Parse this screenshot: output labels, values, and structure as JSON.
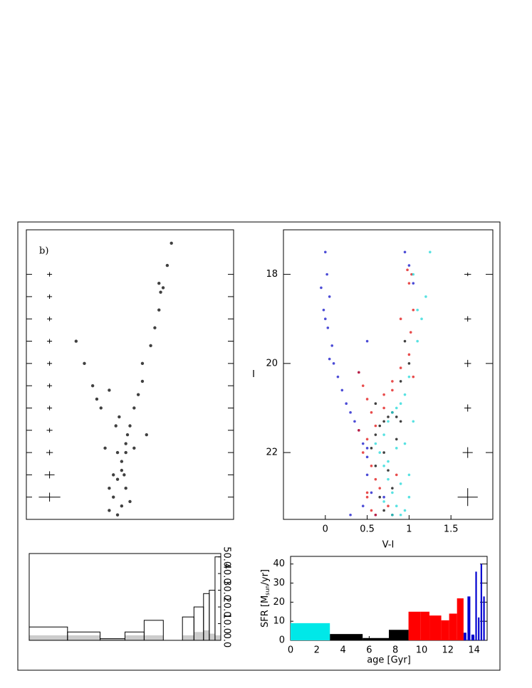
{
  "chart_data": [
    {
      "type": "scatter",
      "annotation": "b)",
      "xlim": [
        -0.5,
        2.0
      ],
      "ylim": [
        23.5,
        17
      ],
      "series": [
        {
          "color": "#000000",
          "x": [
            0.5,
            0.55,
            0.6,
            0.65,
            0.7,
            0.75,
            0.8,
            0.85,
            0.9,
            0.6,
            0.65,
            0.7,
            0.75,
            0.55,
            0.6,
            0.5,
            0.45,
            0.4,
            0.3,
            0.2,
            0.1,
            0.9,
            1.0,
            1.05,
            1.1,
            1.15,
            1.12,
            1.1,
            1.2,
            1.25,
            0.8,
            0.95,
            0.65,
            0.7,
            0.72,
            0.68,
            0.58,
            0.62,
            0.5,
            0.35
          ],
          "y": [
            23.3,
            23.0,
            22.6,
            22.2,
            21.8,
            21.4,
            21.0,
            20.7,
            20.4,
            23.4,
            23.2,
            22.8,
            23.1,
            22.5,
            22.0,
            22.8,
            21.9,
            21.0,
            20.5,
            20.0,
            19.5,
            20.0,
            19.6,
            19.2,
            18.8,
            18.3,
            18.4,
            18.2,
            17.8,
            17.3,
            21.9,
            21.6,
            22.4,
            22.0,
            21.6,
            22.5,
            21.4,
            21.2,
            20.6,
            20.8
          ]
        }
      ],
      "errorbars": {
        "x": [
          -0.22,
          -0.22,
          -0.22,
          -0.22,
          -0.22,
          -0.22,
          -0.22,
          -0.22,
          -0.22,
          -0.22,
          -0.22
        ],
        "y": [
          18,
          18.5,
          19,
          19.5,
          20,
          20.5,
          21,
          21.5,
          22,
          22.5,
          23
        ],
        "xerr": [
          0.03,
          0.03,
          0.03,
          0.03,
          0.03,
          0.03,
          0.03,
          0.035,
          0.04,
          0.06,
          0.13
        ],
        "yerr": [
          0.05,
          0.05,
          0.05,
          0.05,
          0.05,
          0.05,
          0.05,
          0.05,
          0.06,
          0.08,
          0.1
        ]
      }
    },
    {
      "type": "scatter",
      "xlabel": "V-I",
      "ylabel": "I",
      "xlim": [
        -0.5,
        2.0
      ],
      "ylim": [
        23.5,
        17
      ],
      "xticks": [
        0,
        0.5,
        1,
        1.5
      ],
      "yticks": [
        18,
        20,
        22
      ],
      "series": [
        {
          "color": "#1010c8",
          "x": [
            0.0,
            0.02,
            0.05,
            -0.02,
            0.03,
            0.08,
            0.1,
            0.15,
            0.2,
            0.25,
            0.3,
            0.35,
            0.4,
            0.45,
            0.5,
            0.5,
            0.55,
            0.45,
            0.6,
            0.5,
            0.0,
            0.05,
            -0.05,
            1.0,
            1.05,
            0.95,
            0.3,
            0.7,
            0.4,
            0.5
          ],
          "y": [
            17.5,
            18.0,
            18.5,
            18.8,
            19.2,
            19.6,
            20.0,
            20.3,
            20.6,
            20.9,
            21.1,
            21.3,
            21.5,
            21.8,
            22.1,
            22.5,
            22.9,
            23.2,
            23.4,
            21.9,
            19.0,
            19.9,
            18.3,
            17.8,
            18.2,
            17.5,
            23.4,
            23.0,
            20.2,
            19.5
          ]
        },
        {
          "color": "#e01010",
          "x": [
            0.4,
            0.45,
            0.5,
            0.55,
            0.6,
            0.5,
            0.45,
            0.55,
            0.6,
            0.7,
            0.8,
            0.9,
            1.0,
            1.02,
            1.05,
            1.0,
            0.98,
            1.03,
            0.5,
            0.55,
            0.6,
            0.65,
            0.7,
            0.8,
            0.9,
            0.4,
            0.5,
            1.05,
            0.75,
            0.85
          ],
          "y": [
            20.2,
            20.5,
            20.8,
            21.1,
            21.4,
            21.7,
            22.0,
            22.3,
            22.6,
            20.7,
            20.4,
            20.1,
            19.8,
            19.3,
            18.8,
            18.2,
            17.9,
            18.0,
            23.0,
            23.3,
            23.4,
            22.8,
            21.0,
            20.6,
            19.0,
            21.5,
            22.9,
            20.3,
            23.2,
            22.5
          ]
        },
        {
          "color": "#000000",
          "x": [
            0.6,
            0.65,
            0.7,
            0.75,
            0.8,
            0.85,
            0.9,
            0.7,
            0.75,
            0.8,
            0.6,
            0.65,
            0.9,
            1.0,
            0.55,
            0.7,
            0.8,
            0.85,
            0.6,
            0.95
          ],
          "y": [
            21.6,
            21.4,
            21.3,
            21.2,
            21.1,
            21.2,
            21.3,
            22.0,
            22.4,
            22.8,
            22.3,
            23.0,
            20.4,
            20.0,
            21.9,
            23.3,
            23.4,
            21.7,
            20.9,
            19.5
          ]
        },
        {
          "color": "#20d8d8",
          "x": [
            0.65,
            0.7,
            0.75,
            0.8,
            0.85,
            0.9,
            0.95,
            1.0,
            0.7,
            0.75,
            0.8,
            0.85,
            0.9,
            0.95,
            1.0,
            1.1,
            1.15,
            1.2,
            1.05,
            0.95,
            0.8,
            0.7,
            0.6,
            1.0,
            1.05,
            0.9,
            1.1,
            1.25,
            0.85,
            0.75
          ],
          "y": [
            22.0,
            22.3,
            22.6,
            22.9,
            23.2,
            23.4,
            23.3,
            23.0,
            21.6,
            21.3,
            21.1,
            21.0,
            20.9,
            20.7,
            20.3,
            19.5,
            19.0,
            18.5,
            18.0,
            21.8,
            23.4,
            23.1,
            21.8,
            22.5,
            21.3,
            22.7,
            18.8,
            17.5,
            21.9,
            22.2
          ]
        }
      ],
      "errorbars": {
        "x": [
          1.7,
          1.7,
          1.7,
          1.7,
          1.7,
          1.7
        ],
        "y": [
          18,
          19,
          20,
          21,
          22,
          23
        ],
        "xerr": [
          0.04,
          0.04,
          0.04,
          0.04,
          0.06,
          0.12
        ],
        "yerr": [
          0.04,
          0.06,
          0.08,
          0.08,
          0.12,
          0.2
        ]
      }
    },
    {
      "type": "histogram",
      "xlim": [
        0,
        100
      ],
      "ylim": [
        0,
        52
      ],
      "y2ticks": [
        {
          "value": 0,
          "label": "0.0"
        },
        {
          "value": 10,
          "label": "10.0"
        },
        {
          "value": 20,
          "label": "20.0"
        },
        {
          "value": 30,
          "label": "30.0"
        },
        {
          "value": 40,
          "label": "40.0"
        },
        {
          "value": 50,
          "label": "50.0"
        }
      ],
      "series": [
        {
          "color": "#000000",
          "fill": "none",
          "bins": [
            0,
            20,
            37,
            50,
            60,
            70,
            80,
            86,
            91,
            94,
            97,
            100
          ],
          "values": [
            8,
            5,
            1,
            5,
            12,
            0,
            14,
            20,
            28,
            30,
            50
          ]
        },
        {
          "color": "#999999",
          "fill": "#cccccc",
          "bins": [
            0,
            20,
            37,
            50,
            60,
            70,
            80,
            86,
            91,
            94,
            97,
            100
          ],
          "values": [
            3,
            3,
            1,
            3,
            3,
            0,
            3,
            5,
            6,
            4,
            3
          ]
        }
      ]
    },
    {
      "type": "histogram",
      "xlabel": "age [Gyr]",
      "ylabel": {
        "text": "SFR [M",
        "sub": "sun",
        "rest": "/yr]"
      },
      "xlim": [
        0,
        15
      ],
      "ylim": [
        0,
        44
      ],
      "xticks": [
        0,
        2,
        4,
        6,
        8,
        10,
        12,
        14
      ],
      "yticks": [
        0,
        10,
        20,
        30,
        40
      ],
      "series": [
        {
          "color": "#00e8e8",
          "fill": "#00e8e8",
          "bins": [
            0,
            3
          ],
          "values": [
            9
          ]
        },
        {
          "color": "#000000",
          "fill": "#000000",
          "bins": [
            3,
            5.5,
            7.5,
            9
          ],
          "values": [
            3.3,
            1.2,
            5.5
          ]
        },
        {
          "color": "#ff0000",
          "fill": "#ff0000",
          "bins": [
            9,
            9.9,
            10.6,
            11.5,
            12.1,
            12.7,
            13.2
          ],
          "values": [
            15,
            15,
            13,
            10.5,
            14,
            22
          ]
        },
        {
          "color": "#0000d0",
          "fill": "#0000d0",
          "bins": [
            13.2,
            13.5,
            13.8,
            14.1,
            14.3,
            14.5,
            14.7,
            14.9
          ],
          "values": [
            4,
            23,
            3,
            36,
            12,
            40,
            23
          ]
        }
      ]
    }
  ]
}
